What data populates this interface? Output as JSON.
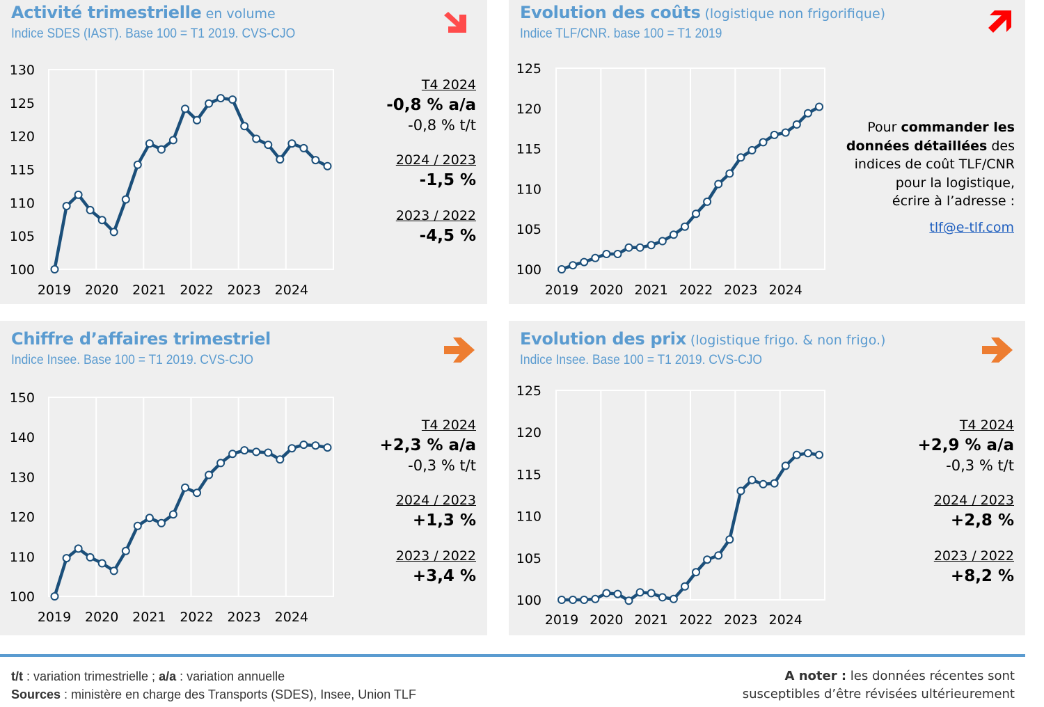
{
  "colors": {
    "title_blue": "#5a9bd0",
    "line": "#1b4f7a",
    "marker_fill": "#ffffff",
    "card_bg": "#efefef",
    "grid": "#ffffff",
    "trend_down": "#ff4b4b",
    "trend_up": "#ff0000",
    "trend_stable": "#ed7d31",
    "link": "#1f5fbf"
  },
  "cards": [
    {
      "title_bold": "Activité trimestrielle",
      "title_light": " en volume",
      "subtitle": "Indice SDES (IAST). Base 100 = T1 2019. CVS-CJO",
      "trend_icon": "arrow-down-right-icon",
      "stats": {
        "period_label": "T4 2024",
        "yoy": "-0,8 % a/a",
        "qoq": "-0,8 % t/t",
        "comp1_label": "2024 / 2023",
        "comp1_value": "-1,5 %",
        "comp2_label": "2023 / 2022",
        "comp2_value": "-4,5 %"
      }
    },
    {
      "title_bold": "Evolution des coûts",
      "title_light": " (logistique non frigorifique)",
      "subtitle": "Indice TLF/CNR. base 100 = T1 2019",
      "trend_icon": "arrow-up-right-icon",
      "order_note": {
        "line1_plain": "Pour ",
        "line1_bold": "commander les",
        "line2_bold": "données détaillées",
        "line2_plain": " des",
        "line3": "indices de coût TLF/CNR",
        "line4": "pour la logistique,",
        "line5": "écrire à l’adresse :",
        "email": "tlf@e-tlf.com"
      }
    },
    {
      "title_bold": "Chiffre d’affaires trimestriel",
      "title_light": "",
      "subtitle": "Indice Insee. Base 100 = T1 2019. CVS-CJO",
      "trend_icon": "arrow-right-icon",
      "stats": {
        "period_label": "T4 2024",
        "yoy": "+2,3 % a/a",
        "qoq": "-0,3 % t/t",
        "comp1_label": "2024 / 2023",
        "comp1_value": "+1,3 %",
        "comp2_label": "2023 / 2022",
        "comp2_value": "+3,4 %"
      }
    },
    {
      "title_bold": "Evolution des prix",
      "title_light": " (logistique frigo. & non frigo.)",
      "subtitle": "Indice Insee. Base 100 = T1 2019. CVS-CJO",
      "trend_icon": "arrow-right-icon",
      "stats": {
        "period_label": "T4 2024",
        "yoy": "+2,9 % a/a",
        "qoq": "-0,3 % t/t",
        "comp1_label": "2024 / 2023",
        "comp1_value": "+2,8 %",
        "comp2_label": "2023 / 2022",
        "comp2_value": "+8,2 %"
      }
    }
  ],
  "chart_data": [
    {
      "type": "line",
      "title": "Activité trimestrielle en volume",
      "subtitle": "Indice SDES (IAST). Base 100 = T1 2019. CVS-CJO",
      "xlabel": "",
      "ylabel": "",
      "x_tick_labels": [
        "2019",
        "2020",
        "2021",
        "2022",
        "2023",
        "2024"
      ],
      "y_ticks": [
        100,
        105,
        110,
        115,
        120,
        125,
        130
      ],
      "ylim": [
        100,
        130
      ],
      "grid": "vertical",
      "series": [
        {
          "name": "Activité trimestrielle",
          "x": [
            "T1 2019",
            "T2 2019",
            "T3 2019",
            "T4 2019",
            "T1 2020",
            "T2 2020",
            "T3 2020",
            "T4 2020",
            "T1 2021",
            "T2 2021",
            "T3 2021",
            "T4 2021",
            "T1 2022",
            "T2 2022",
            "T3 2022",
            "T4 2022",
            "T1 2023",
            "T2 2023",
            "T3 2023",
            "T4 2023",
            "T1 2024",
            "T2 2024",
            "T3 2024",
            "T4 2024"
          ],
          "values": [
            100.0,
            109.5,
            111.2,
            108.9,
            107.4,
            105.6,
            110.5,
            115.7,
            118.9,
            118.0,
            119.4,
            124.1,
            122.4,
            124.9,
            125.7,
            125.5,
            121.5,
            119.6,
            118.7,
            116.5,
            118.9,
            118.2,
            116.4,
            115.5
          ]
        }
      ]
    },
    {
      "type": "line",
      "title": "Evolution des coûts (logistique non frigorifique)",
      "subtitle": "Indice TLF/CNR. base 100 = T1 2019",
      "xlabel": "",
      "ylabel": "",
      "x_tick_labels": [
        "2019",
        "2020",
        "2021",
        "2022",
        "2023",
        "2024"
      ],
      "y_ticks": [
        100,
        105,
        110,
        115,
        120,
        125
      ],
      "ylim": [
        100,
        125
      ],
      "grid": "vertical",
      "series": [
        {
          "name": "Coûts logistique non frigo",
          "x": [
            "T1 2019",
            "T2 2019",
            "T3 2019",
            "T4 2019",
            "T1 2020",
            "T2 2020",
            "T3 2020",
            "T4 2020",
            "T1 2021",
            "T2 2021",
            "T3 2021",
            "T4 2021",
            "T1 2022",
            "T2 2022",
            "T3 2022",
            "T4 2022",
            "T1 2023",
            "T2 2023",
            "T3 2023",
            "T4 2023",
            "T1 2024",
            "T2 2024",
            "T3 2024",
            "T4 2024"
          ],
          "values": [
            100.0,
            100.5,
            100.9,
            101.4,
            101.9,
            101.9,
            102.7,
            102.7,
            103.0,
            103.5,
            104.3,
            105.3,
            106.9,
            108.4,
            110.6,
            111.9,
            113.9,
            114.8,
            115.8,
            116.7,
            117.0,
            118.0,
            119.4,
            120.2
          ]
        }
      ]
    },
    {
      "type": "line",
      "title": "Chiffre d’affaires trimestriel",
      "subtitle": "Indice Insee. Base 100 = T1 2019. CVS-CJO",
      "xlabel": "",
      "ylabel": "",
      "x_tick_labels": [
        "2019",
        "2020",
        "2021",
        "2022",
        "2023",
        "2024"
      ],
      "y_ticks": [
        100,
        110,
        120,
        130,
        140,
        150
      ],
      "ylim": [
        100,
        150
      ],
      "grid": "vertical",
      "series": [
        {
          "name": "Chiffre d'affaires",
          "x": [
            "T1 2019",
            "T2 2019",
            "T3 2019",
            "T4 2019",
            "T1 2020",
            "T2 2020",
            "T3 2020",
            "T4 2020",
            "T1 2021",
            "T2 2021",
            "T3 2021",
            "T4 2021",
            "T1 2022",
            "T2 2022",
            "T3 2022",
            "T4 2022",
            "T1 2023",
            "T2 2023",
            "T3 2023",
            "T4 2023",
            "T1 2024",
            "T2 2024",
            "T3 2024",
            "T4 2024"
          ],
          "values": [
            100.0,
            109.6,
            112.0,
            109.8,
            108.3,
            106.4,
            111.4,
            117.7,
            119.7,
            118.4,
            120.6,
            127.3,
            126.0,
            130.5,
            133.5,
            135.8,
            136.7,
            136.3,
            136.1,
            134.4,
            137.2,
            138.1,
            137.9,
            137.4
          ]
        }
      ]
    },
    {
      "type": "line",
      "title": "Evolution des prix (logistique frigo. & non frigo.)",
      "subtitle": "Indice Insee. Base 100 = T1 2019. CVS-CJO",
      "xlabel": "",
      "ylabel": "",
      "x_tick_labels": [
        "2019",
        "2020",
        "2021",
        "2022",
        "2023",
        "2024"
      ],
      "y_ticks": [
        100,
        105,
        110,
        115,
        120,
        125
      ],
      "ylim": [
        100,
        125
      ],
      "grid": "vertical",
      "series": [
        {
          "name": "Prix logistique",
          "x": [
            "T1 2019",
            "T2 2019",
            "T3 2019",
            "T4 2019",
            "T1 2020",
            "T2 2020",
            "T3 2020",
            "T4 2020",
            "T1 2021",
            "T2 2021",
            "T3 2021",
            "T4 2021",
            "T1 2022",
            "T2 2022",
            "T3 2022",
            "T4 2022",
            "T1 2023",
            "T2 2023",
            "T3 2023",
            "T4 2023",
            "T1 2024",
            "T2 2024",
            "T3 2024",
            "T4 2024"
          ],
          "values": [
            100.0,
            100.0,
            100.0,
            100.1,
            100.8,
            100.7,
            99.9,
            100.9,
            100.8,
            100.3,
            100.1,
            101.6,
            103.3,
            104.8,
            105.3,
            107.2,
            113.0,
            114.3,
            113.8,
            113.9,
            116.0,
            117.3,
            117.5,
            117.3
          ]
        }
      ]
    }
  ],
  "footer": {
    "legend_tt_bold": "t/t",
    "legend_tt_text": " : variation trimestrielle ; ",
    "legend_aa_bold": "a/a",
    "legend_aa_text": " : variation annuelle",
    "sources_bold": "Sources",
    "sources_text": " : ministère en charge des Transports (SDES), Insee, Union TLF",
    "note_bold": "A noter :",
    "note_text_1": " les données récentes sont",
    "note_text_2": "susceptibles d’être révisées ultérieurement"
  }
}
